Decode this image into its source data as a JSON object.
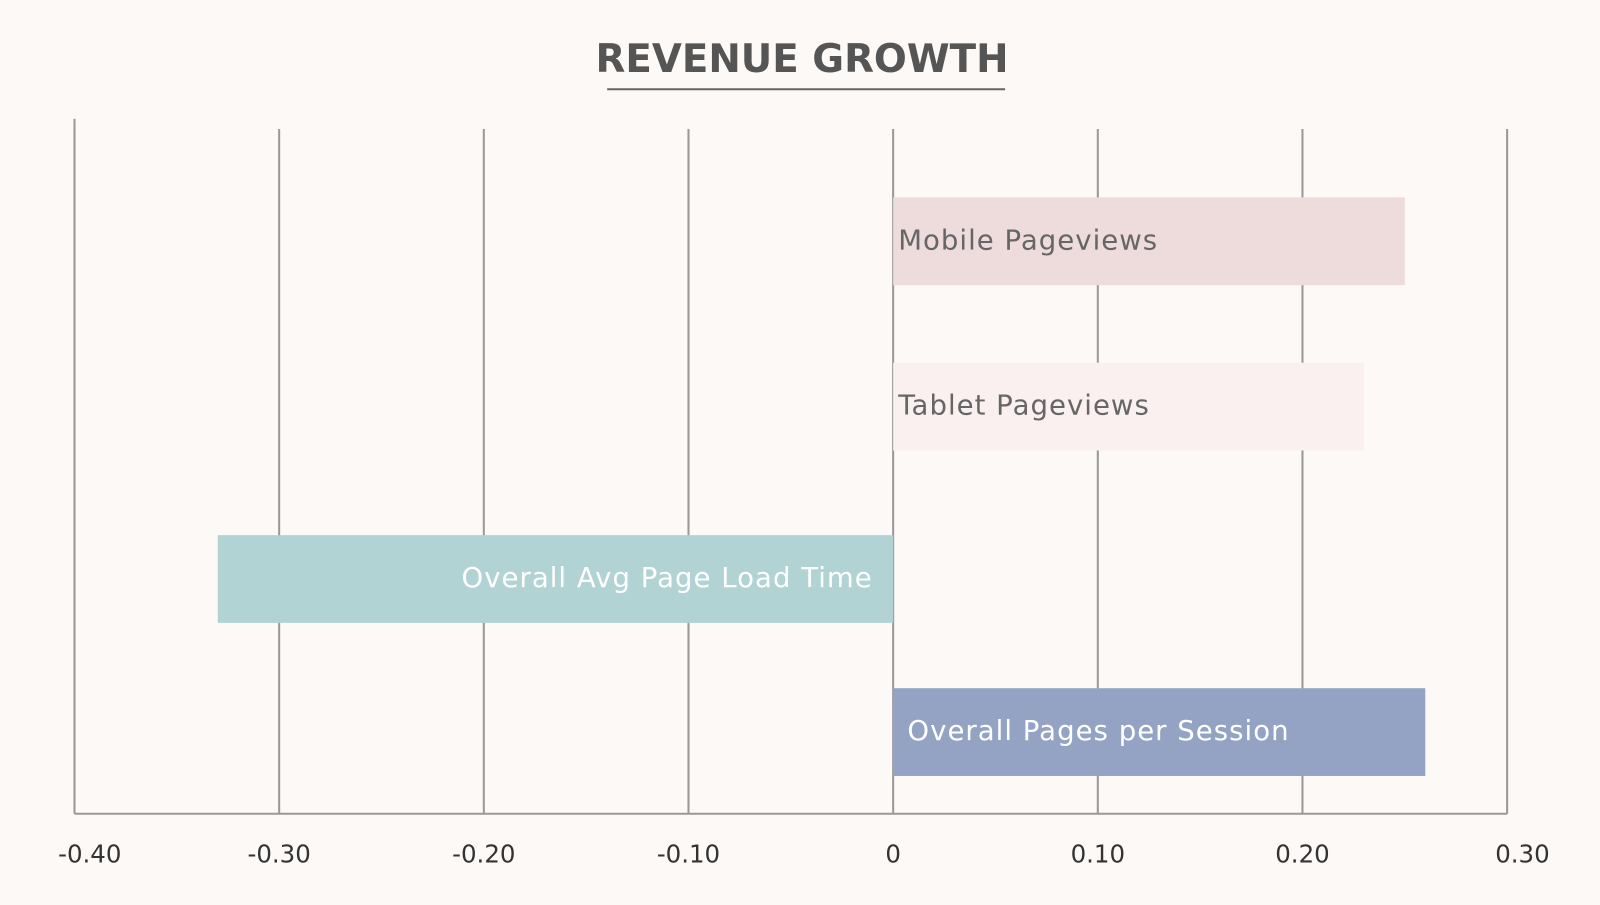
{
  "chart_data": {
    "type": "hbar",
    "title": "REVENUE GROWTH",
    "categories": [
      "Mobile Pageviews",
      "Tablet Pageviews",
      "Overall Avg Page Load Time",
      "Overall Pages per Session"
    ],
    "values": [
      0.25,
      0.23,
      -0.33,
      0.26
    ],
    "colors": [
      "#eddcdb",
      "#f9f0ef",
      "#b2d3d4",
      "#94a3c4"
    ],
    "xlim": [
      -0.4,
      0.3
    ],
    "xticks": [
      {
        "value": -0.4,
        "label": "-0.40"
      },
      {
        "value": -0.3,
        "label": "-0.30"
      },
      {
        "value": -0.2,
        "label": "-0.20"
      },
      {
        "value": -0.1,
        "label": "-0.10"
      },
      0,
      {
        "value": 0.1,
        "label": "0.10"
      },
      {
        "value": 0.2,
        "label": "0.20"
      },
      {
        "value": 0.3,
        "label": "0.30"
      }
    ],
    "grid": true
  }
}
